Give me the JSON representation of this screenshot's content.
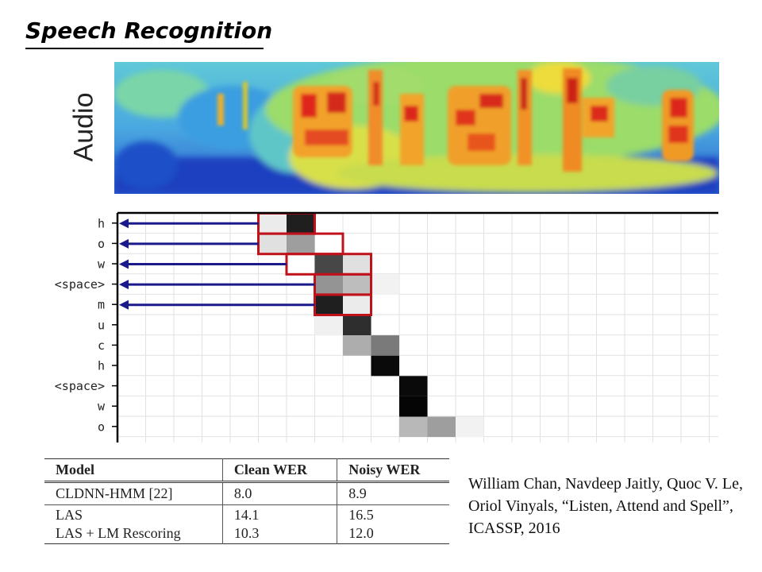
{
  "title": "Speech Recognition",
  "spectrogram_label": "Audio",
  "attention": {
    "row_labels": [
      "h",
      "o",
      "w",
      "<space>",
      "m",
      "u",
      "c",
      "h",
      "<space>",
      "w",
      "o"
    ],
    "highlight_color": "#c0121b",
    "arrow_color": "#1a1a8c",
    "weights": [
      [
        [
          5,
          0.08
        ],
        [
          6,
          0.88
        ]
      ],
      [
        [
          5,
          0.12
        ],
        [
          6,
          0.38
        ]
      ],
      [
        [
          7,
          0.72
        ],
        [
          8,
          0.12
        ]
      ],
      [
        [
          7,
          0.42
        ],
        [
          8,
          0.26
        ],
        [
          9,
          0.05
        ]
      ],
      [
        [
          7,
          0.88
        ],
        [
          8,
          0.08
        ]
      ],
      [
        [
          7,
          0.06
        ],
        [
          8,
          0.82
        ]
      ],
      [
        [
          8,
          0.32
        ],
        [
          9,
          0.52
        ]
      ],
      [
        [
          9,
          0.96
        ]
      ],
      [
        [
          10,
          0.96
        ]
      ],
      [
        [
          10,
          0.98
        ]
      ],
      [
        [
          10,
          0.28
        ],
        [
          11,
          0.38
        ],
        [
          12,
          0.05
        ]
      ]
    ]
  },
  "table": {
    "headers": [
      "Model",
      "Clean WER",
      "Noisy WER"
    ],
    "rows": [
      {
        "model": "CLDNN-HMM [22]",
        "clean": "8.0",
        "noisy": "8.9"
      },
      {
        "model": "LAS",
        "clean": "14.1",
        "noisy": "16.5"
      },
      {
        "model": "LAS + LM Rescoring",
        "clean": "10.3",
        "noisy": "12.0"
      }
    ]
  },
  "citation": "William Chan, Navdeep Jaitly, Quoc V. Le, Oriol Vinyals, “Listen, Attend and Spell”, ICASSP, 2016"
}
